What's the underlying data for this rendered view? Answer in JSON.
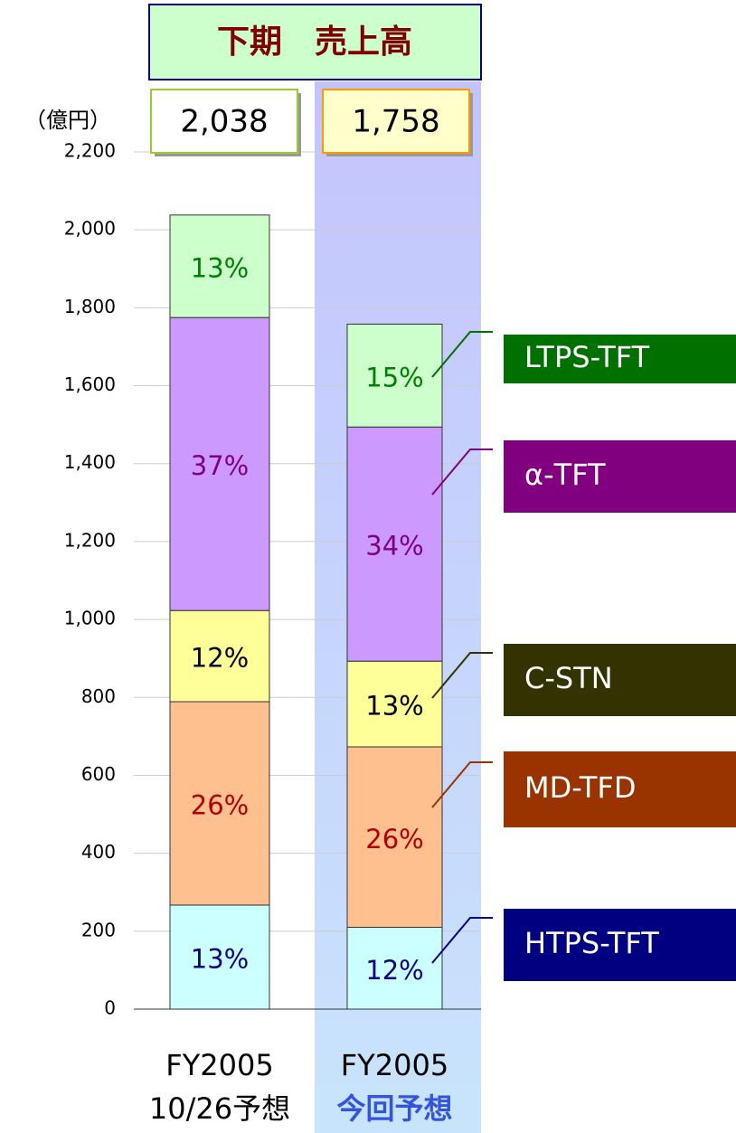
{
  "chart_data": {
    "type": "stacked_bar",
    "title": "下期　売上高",
    "unit_label": "（億円）",
    "categories": [
      [
        "FY2005",
        "10/26予想"
      ],
      [
        "FY2005",
        "今回予想"
      ]
    ],
    "totals": [
      {
        "value": 2038,
        "label": "2,038"
      },
      {
        "value": 1758,
        "label": "1,758"
      }
    ],
    "ylim": [
      0,
      2200
    ],
    "yticks": [
      0,
      200,
      400,
      600,
      800,
      {
        "value": 1000,
        "label": "1,000"
      },
      {
        "value": 1200,
        "label": "1,200"
      },
      {
        "value": 1400,
        "label": "1,400"
      },
      {
        "value": 1600,
        "label": "1,600"
      },
      {
        "value": 1800,
        "label": "1,800"
      },
      {
        "value": 2000,
        "label": "2,000"
      },
      {
        "value": 2200,
        "label": "2,200"
      }
    ],
    "grid": true,
    "series": [
      {
        "name": "HTPS-TFT",
        "color": "#ccffff",
        "label_color": "#000080",
        "legend_color": "#000080",
        "values": [
          267,
          210
        ],
        "labels": [
          "13%",
          "12%"
        ]
      },
      {
        "name": "MD-TFD",
        "color": "#ffc090",
        "label_color": "#b00000",
        "legend_color": "#993300",
        "values": [
          522,
          463
        ],
        "labels": [
          "26%",
          "26%"
        ]
      },
      {
        "name": "C-STN",
        "color": "#ffff99",
        "label_color": "#000000",
        "legend_color": "#333300",
        "values": [
          234,
          220
        ],
        "labels": [
          "12%",
          "13%"
        ]
      },
      {
        "name": "α-TFT",
        "color": "#cc99ff",
        "label_color": "#800080",
        "legend_color": "#800080",
        "values": [
          752,
          601
        ],
        "labels": [
          "37%",
          "34%"
        ]
      },
      {
        "name": "LTPS-TFT",
        "color": "#ccffcc",
        "label_color": "#008000",
        "legend_color": "#007000",
        "values": [
          263,
          264
        ],
        "labels": [
          "13%",
          "15%"
        ]
      }
    ]
  }
}
